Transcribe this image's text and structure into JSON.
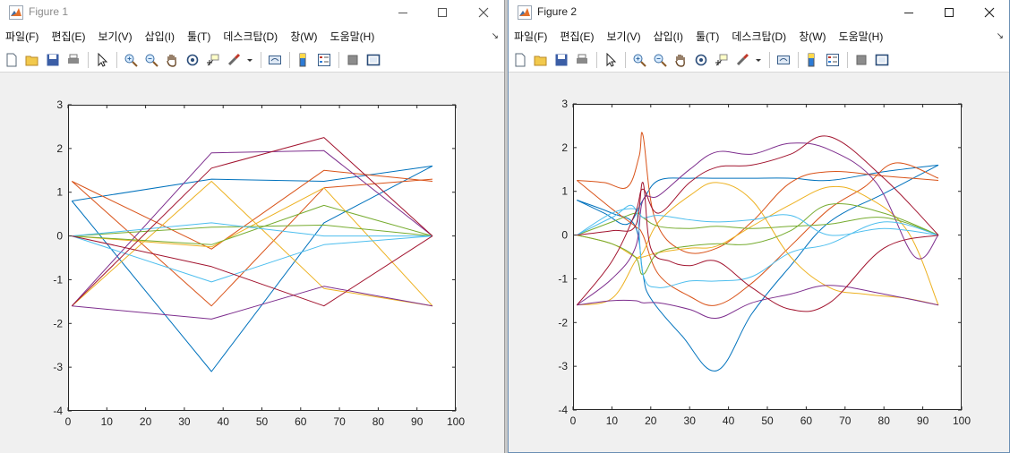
{
  "windows": [
    {
      "title": "Figure 1",
      "menu": [
        "파일(F)",
        "편집(E)",
        "보기(V)",
        "삽입(I)",
        "툴(T)",
        "데스크탑(D)",
        "창(W)",
        "도움말(H)"
      ],
      "chart_data": {
        "type": "line",
        "xlim": [
          0,
          100
        ],
        "ylim": [
          -4,
          3
        ],
        "xticks": [
          0,
          10,
          20,
          30,
          40,
          50,
          60,
          70,
          80,
          90,
          100
        ],
        "yticks": [
          3,
          2,
          1,
          0,
          -1,
          -2,
          -3,
          -4
        ],
        "grid": false,
        "interpolation": "linear",
        "x": [
          1,
          37,
          66,
          94
        ],
        "series": [
          {
            "color": "#0072bd",
            "values": [
              0.8,
              -3.1,
              0.3,
              1.6
            ]
          },
          {
            "color": "#0072bd",
            "values": [
              0.8,
              1.3,
              1.25,
              1.6
            ]
          },
          {
            "color": "#d95319",
            "values": [
              1.25,
              -0.3,
              1.5,
              1.25
            ]
          },
          {
            "color": "#d95319",
            "values": [
              1.25,
              -1.6,
              1.1,
              1.3
            ]
          },
          {
            "color": "#edb120",
            "values": [
              -1.6,
              1.25,
              -1.2,
              -1.6
            ]
          },
          {
            "color": "#edb120",
            "values": [
              0,
              -0.25,
              1.1,
              -1.6
            ]
          },
          {
            "color": "#7e2f8e",
            "values": [
              -1.6,
              1.9,
              1.95,
              0
            ]
          },
          {
            "color": "#7e2f8e",
            "values": [
              -1.6,
              -1.9,
              -1.15,
              -1.6
            ]
          },
          {
            "color": "#77ac30",
            "values": [
              0,
              -0.2,
              0.7,
              0
            ]
          },
          {
            "color": "#77ac30",
            "values": [
              0,
              0.2,
              0.25,
              0
            ]
          },
          {
            "color": "#4dbeee",
            "values": [
              0,
              -1.05,
              -0.2,
              0
            ]
          },
          {
            "color": "#4dbeee",
            "values": [
              0,
              0.3,
              0,
              0
            ]
          },
          {
            "color": "#a2142f",
            "values": [
              -1.6,
              1.55,
              2.25,
              0
            ]
          },
          {
            "color": "#a2142f",
            "values": [
              0,
              -0.7,
              -1.6,
              0
            ]
          }
        ]
      }
    },
    {
      "title": "Figure 2",
      "menu": [
        "파일(F)",
        "편집(E)",
        "보기(V)",
        "삽입(I)",
        "툴(T)",
        "데스크탑(D)",
        "창(W)",
        "도움말(H)"
      ],
      "chart_data": {
        "type": "line",
        "xlim": [
          0,
          100
        ],
        "ylim": [
          -4,
          3
        ],
        "xticks": [
          0,
          10,
          20,
          30,
          40,
          50,
          60,
          70,
          80,
          90,
          100
        ],
        "yticks": [
          3,
          2,
          1,
          0,
          -1,
          -2,
          -3,
          -4
        ],
        "grid": false,
        "interpolation": "smooth",
        "series": [
          {
            "color": "#0072bd",
            "x": [
              1,
              10,
              16,
              18,
              20,
              28,
              37,
              46,
              56,
              66,
              80,
              94
            ],
            "values": [
              0.8,
              0.5,
              0.2,
              -0.9,
              -1.45,
              -2.3,
              -3.1,
              -1.8,
              -0.7,
              0.3,
              0.95,
              1.6
            ]
          },
          {
            "color": "#0072bd",
            "x": [
              1,
              8,
              14,
              18,
              22,
              30,
              37,
              46,
              56,
              66,
              80,
              94
            ],
            "values": [
              0.8,
              0.5,
              0.25,
              0.8,
              1.25,
              1.3,
              1.3,
              1.3,
              1.3,
              1.25,
              1.45,
              1.6
            ]
          },
          {
            "color": "#d95319",
            "x": [
              1,
              8,
              14,
              17,
              18,
              21,
              28,
              37,
              46,
              56,
              66,
              80,
              94
            ],
            "values": [
              1.25,
              1.2,
              1.1,
              1.8,
              2.28,
              0.4,
              -0.35,
              -0.3,
              0.3,
              1.2,
              1.45,
              1.35,
              1.25
            ]
          },
          {
            "color": "#d95319",
            "x": [
              1,
              10,
              16,
              18,
              22,
              30,
              37,
              46,
              56,
              66,
              75,
              83,
              94
            ],
            "values": [
              1.25,
              0.6,
              0.2,
              0.0,
              -0.9,
              -1.4,
              -1.6,
              -1.1,
              -0.25,
              0.6,
              1.1,
              1.65,
              1.3
            ]
          },
          {
            "color": "#edb120",
            "x": [
              1,
              10,
              16,
              18,
              22,
              30,
              37,
              46,
              56,
              66,
              75,
              86,
              94
            ],
            "values": [
              -1.6,
              -1.45,
              -0.6,
              -0.4,
              0.3,
              0.9,
              1.2,
              0.8,
              -0.5,
              -1.2,
              -1.35,
              -1.45,
              -1.6
            ]
          },
          {
            "color": "#edb120",
            "x": [
              1,
              10,
              16,
              18,
              22,
              30,
              37,
              46,
              56,
              66,
              75,
              86,
              94
            ],
            "values": [
              0,
              -0.2,
              -0.5,
              -0.5,
              -0.4,
              -0.3,
              -0.25,
              0.2,
              0.7,
              1.1,
              0.9,
              0.1,
              -1.6
            ]
          },
          {
            "color": "#7e2f8e",
            "x": [
              1,
              10,
              16,
              18,
              22,
              30,
              37,
              46,
              56,
              66,
              78,
              88,
              94
            ],
            "values": [
              -1.6,
              -1.0,
              -0.3,
              0.8,
              0.9,
              1.5,
              1.9,
              1.85,
              2.1,
              1.95,
              1.2,
              -0.5,
              0
            ]
          },
          {
            "color": "#7e2f8e",
            "x": [
              1,
              10,
              16,
              18,
              22,
              30,
              37,
              46,
              56,
              66,
              80,
              94
            ],
            "values": [
              -1.6,
              -1.5,
              -1.5,
              -1.55,
              -1.55,
              -1.7,
              -1.9,
              -1.55,
              -1.35,
              -1.15,
              -1.35,
              -1.6
            ]
          },
          {
            "color": "#77ac30",
            "x": [
              1,
              10,
              16,
              18,
              22,
              30,
              37,
              46,
              56,
              66,
              80,
              94
            ],
            "values": [
              0,
              -0.2,
              -0.5,
              -0.9,
              -0.4,
              -0.25,
              -0.2,
              -0.2,
              0.1,
              0.7,
              0.5,
              0
            ]
          },
          {
            "color": "#77ac30",
            "x": [
              1,
              10,
              16,
              18,
              22,
              30,
              37,
              46,
              56,
              66,
              80,
              94
            ],
            "values": [
              0,
              0.3,
              0.5,
              0.4,
              0.2,
              0.15,
              0.2,
              0.15,
              0.2,
              0.25,
              0.4,
              0
            ]
          },
          {
            "color": "#4dbeee",
            "x": [
              1,
              10,
              16,
              18,
              22,
              30,
              37,
              46,
              56,
              66,
              80,
              94
            ],
            "values": [
              0,
              0.4,
              0.6,
              -0.9,
              -1.2,
              -1.05,
              -1.05,
              -0.95,
              -0.4,
              -0.2,
              0.3,
              0
            ]
          },
          {
            "color": "#4dbeee",
            "x": [
              1,
              10,
              16,
              18,
              22,
              30,
              37,
              46,
              56,
              66,
              80,
              94
            ],
            "values": [
              0,
              0.5,
              0.6,
              0.4,
              0.45,
              0.35,
              0.3,
              0.35,
              0.45,
              0,
              0.15,
              0
            ]
          },
          {
            "color": "#a2142f",
            "x": [
              1,
              10,
              16,
              18,
              22,
              30,
              37,
              46,
              56,
              66,
              80,
              94
            ],
            "values": [
              -1.6,
              -0.6,
              0.5,
              1.05,
              0.5,
              1.2,
              1.55,
              1.6,
              1.85,
              2.25,
              1.3,
              0
            ]
          },
          {
            "color": "#a2142f",
            "x": [
              1,
              10,
              16,
              18,
              20,
              25,
              30,
              37,
              46,
              56,
              66,
              80,
              94
            ],
            "values": [
              0,
              0.1,
              0.2,
              1.2,
              -0.3,
              -0.6,
              -0.7,
              -0.6,
              -1.2,
              -1.7,
              -1.55,
              -0.3,
              0
            ]
          }
        ]
      }
    }
  ]
}
